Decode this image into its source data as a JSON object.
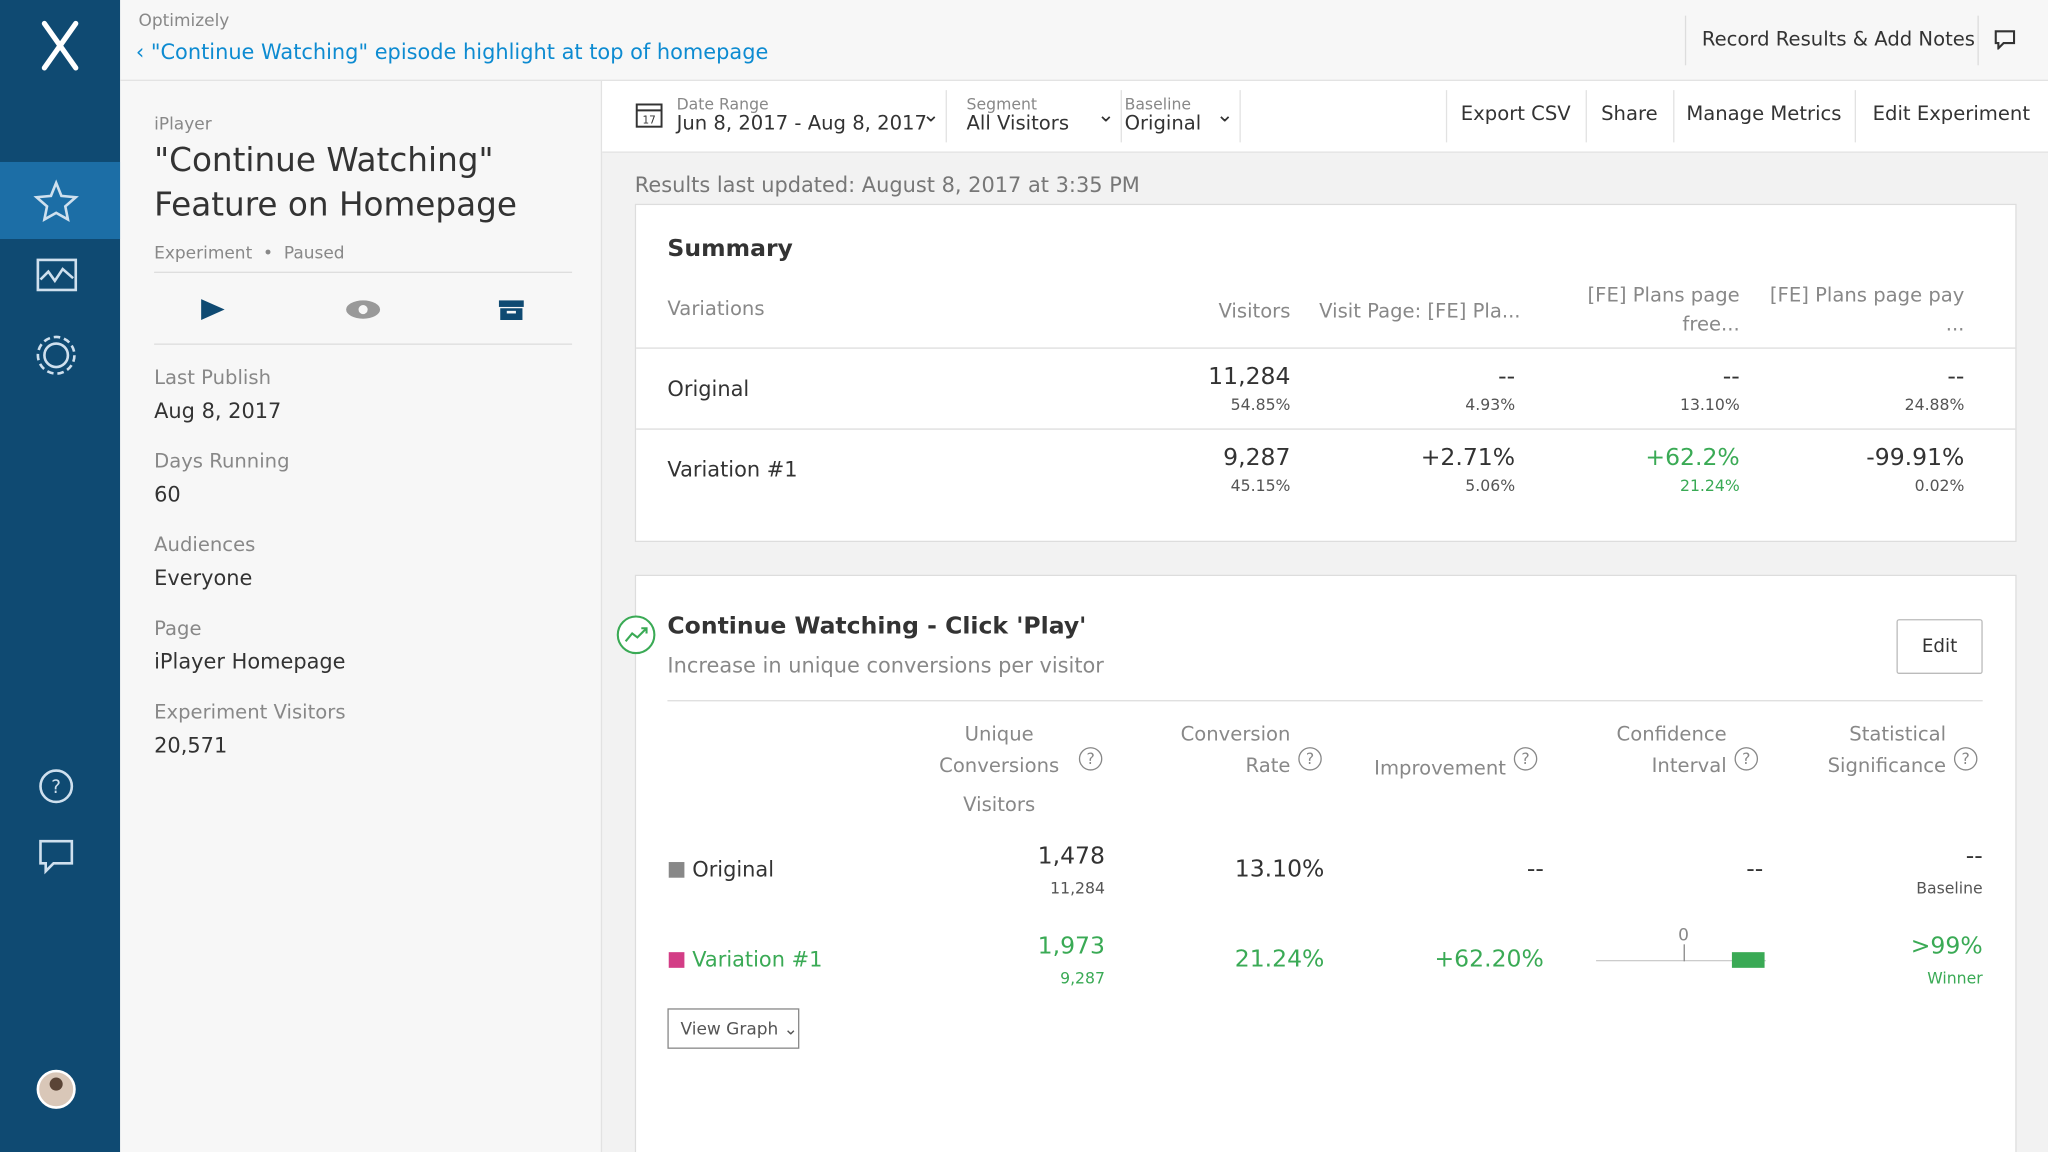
{
  "breadcrumb": {
    "product": "Optimizely",
    "back": "\"Continue Watching\" episode highlight at top of homepage"
  },
  "header_action": "Record Results & Add Notes",
  "experiment": {
    "project": "iPlayer",
    "title": "\"Continue Watching\" Feature on Homepage",
    "type": "Experiment",
    "status": "Paused",
    "details": [
      {
        "label": "Last Publish",
        "value": "Aug 8, 2017"
      },
      {
        "label": "Days Running",
        "value": "60"
      },
      {
        "label": "Audiences",
        "value": "Everyone"
      },
      {
        "label": "Page",
        "value": "iPlayer Homepage"
      },
      {
        "label": "Experiment Visitors",
        "value": "20,571"
      }
    ]
  },
  "toolbar": {
    "filters": [
      {
        "label": "Date Range",
        "value": "Jun 8, 2017 - Aug 8, 2017"
      },
      {
        "label": "Segment",
        "value": "All Visitors"
      },
      {
        "label": "Baseline",
        "value": "Original"
      }
    ],
    "actions": [
      "Export CSV",
      "Share",
      "Manage Metrics",
      "Edit Experiment"
    ]
  },
  "updated": "Results last updated: August 8, 2017 at 3:35 PM",
  "summary": {
    "title": "Summary",
    "columns": [
      "Variations",
      "Visitors",
      "Visit Page: [FE] Pla...",
      "[FE] Plans page free...",
      "[FE] Plans page pay ..."
    ],
    "rows": [
      {
        "name": "Original",
        "cells": [
          [
            "11,284",
            "54.85%"
          ],
          [
            "--",
            "4.93%"
          ],
          [
            "--",
            "13.10%"
          ],
          [
            "--",
            "24.88%"
          ]
        ]
      },
      {
        "name": "Variation #1",
        "cells": [
          [
            "9,287",
            "45.15%"
          ],
          [
            "+2.71%",
            "5.06%"
          ],
          [
            "+62.2%",
            "21.24%"
          ],
          [
            "-99.91%",
            "0.02%"
          ]
        ]
      }
    ]
  },
  "metric": {
    "title": "Continue Watching - Click 'Play'",
    "subtitle": "Increase in unique conversions per visitor",
    "edit": "Edit",
    "columns": [
      "Unique Conversions",
      "Conversion Rate",
      "Improvement",
      "Confidence Interval",
      "Statistical Significance"
    ],
    "sub_column": "Visitors",
    "interval_zero": "0",
    "rows": [
      {
        "name": "Original",
        "conversions": "1,478",
        "visitors": "11,284",
        "rate": "13.10%",
        "improvement": "--",
        "interval": "--",
        "significance": "--",
        "note": "Baseline"
      },
      {
        "name": "Variation #1",
        "conversions": "1,973",
        "visitors": "9,287",
        "rate": "21.24%",
        "improvement": "+62.20%",
        "significance": ">99%",
        "note": "Winner"
      }
    ],
    "view_graph": "View Graph"
  }
}
